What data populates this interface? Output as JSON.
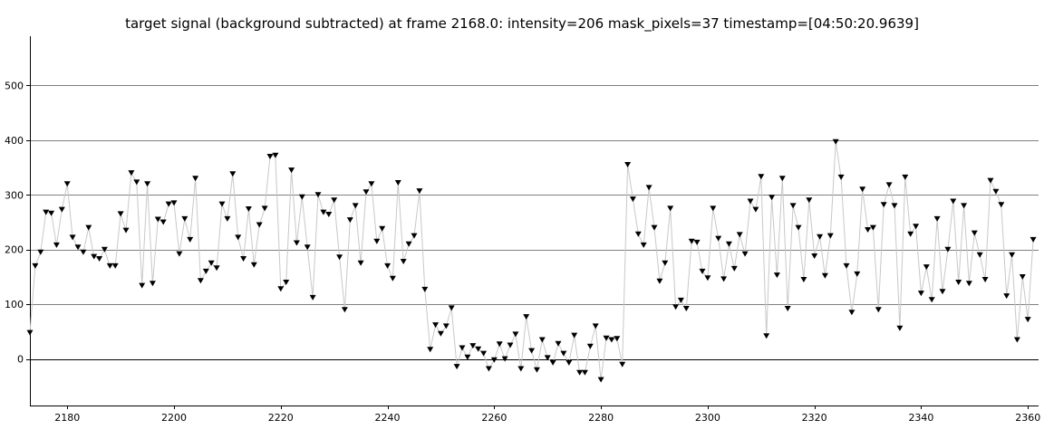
{
  "chart_data": {
    "type": "scatter",
    "title": "target signal (background subtracted) at frame 2168.0: intensity=206 mask_pixels=37 timestamp=[04:50:20.9639]",
    "xlabel": "",
    "ylabel": "",
    "xlim": [
      2173,
      2362
    ],
    "ylim": [
      -85,
      590
    ],
    "x_ticks": [
      2180,
      2200,
      2220,
      2240,
      2260,
      2280,
      2300,
      2320,
      2340,
      2360
    ],
    "y_ticks": [
      0,
      100,
      200,
      300,
      400,
      500
    ],
    "grid": "horizontal",
    "marker": "triangle-down",
    "line_color": "#c8c8c8",
    "marker_color": "#000000",
    "series": [
      {
        "x_start": 2173,
        "values": [
          48,
          170,
          195,
          268,
          266,
          208,
          273,
          320,
          222,
          204,
          195,
          240,
          187,
          183,
          200,
          170,
          170,
          265,
          235,
          340,
          323,
          134,
          320,
          138,
          255,
          250,
          283,
          285,
          192,
          256,
          218,
          330,
          143,
          160,
          175,
          166,
          283,
          256,
          338,
          222,
          183,
          274,
          172,
          245,
          275,
          370,
          372,
          128,
          140,
          345,
          212,
          296,
          204,
          112,
          300,
          268,
          264,
          290,
          186,
          90,
          254,
          280,
          175,
          305,
          320,
          215,
          238,
          170,
          147,
          322,
          178,
          210,
          225,
          307,
          127,
          17,
          62,
          46,
          60,
          93,
          -14,
          20,
          3,
          24,
          18,
          10,
          -18,
          -2,
          27,
          0,
          25,
          45,
          -18,
          77,
          15,
          -20,
          35,
          2,
          -7,
          28,
          10,
          -7,
          43,
          -25,
          -25,
          23,
          60,
          -38,
          38,
          35,
          37,
          -10,
          355,
          292,
          228,
          208,
          313,
          240,
          142,
          175,
          275,
          95,
          107,
          92,
          215,
          213,
          160,
          148,
          275,
          220,
          146,
          210,
          165,
          227,
          192,
          288,
          273,
          333,
          42,
          295,
          153,
          330,
          92,
          280,
          240,
          145,
          290,
          188,
          223,
          152,
          225,
          397,
          332,
          170,
          85,
          155,
          310,
          236,
          240,
          90,
          282,
          318,
          280,
          56,
          332,
          228,
          242,
          120,
          168,
          108,
          256,
          123,
          200,
          288,
          140,
          280,
          138,
          230,
          190,
          145,
          326,
          306,
          282,
          115,
          190,
          35,
          150,
          72,
          218
        ]
      }
    ]
  }
}
